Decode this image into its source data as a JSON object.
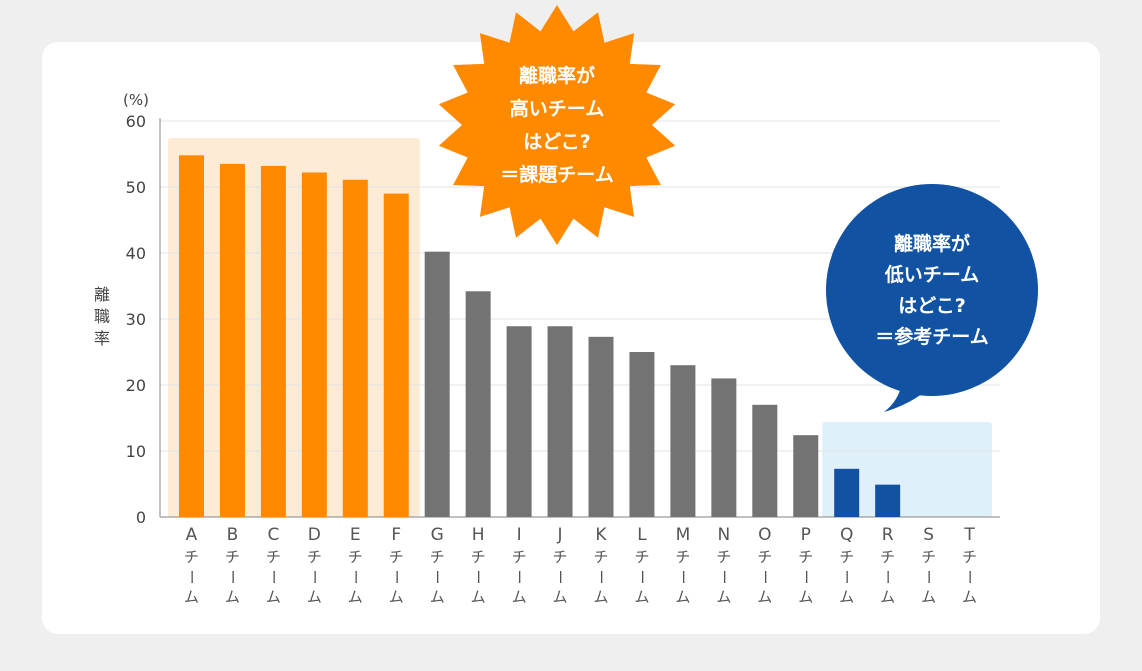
{
  "chart_data": {
    "type": "bar",
    "unit_label": "(%)",
    "ylabel": "離職率",
    "ylim": [
      0,
      60
    ],
    "yticks": [
      0,
      10,
      20,
      30,
      40,
      50,
      60
    ],
    "grid": true,
    "categories": [
      "A",
      "B",
      "C",
      "D",
      "E",
      "F",
      "G",
      "H",
      "I",
      "J",
      "K",
      "L",
      "M",
      "N",
      "O",
      "P",
      "Q",
      "R",
      "S",
      "T"
    ],
    "category_suffix": "チーム",
    "values": [
      54.8,
      53.5,
      53.2,
      52.2,
      51.1,
      49.0,
      40.2,
      34.2,
      28.9,
      28.9,
      27.3,
      25.0,
      23.0,
      21.0,
      17.0,
      12.4,
      7.3,
      4.9,
      0,
      0
    ],
    "colors": {
      "high": "#ff8a00",
      "middle": "#737373",
      "low": "#1252a3",
      "high_highlight": "#fdebd6",
      "low_highlight": "#dff0fb"
    },
    "groups": {
      "high": [
        "A",
        "B",
        "C",
        "D",
        "E",
        "F"
      ],
      "low": [
        "Q",
        "R",
        "S",
        "T"
      ]
    },
    "annotations": [
      {
        "id": "high",
        "shape": "starburst",
        "color": "#ff8a00",
        "lines": [
          "離職率が",
          "高いチーム",
          "はどこ?",
          "＝課題チーム"
        ]
      },
      {
        "id": "low",
        "shape": "speech-bubble",
        "color": "#1252a3",
        "lines": [
          "離職率が",
          "低いチーム",
          "はどこ?",
          "＝参考チーム"
        ]
      }
    ]
  }
}
